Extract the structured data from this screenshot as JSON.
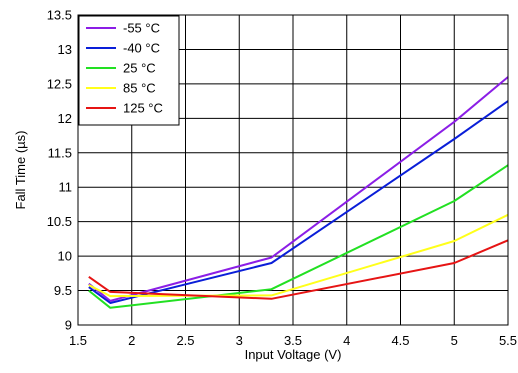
{
  "chart_data": {
    "type": "line",
    "xlabel": "Input Voltage (V)",
    "ylabel": "Fall Time (µs)",
    "xlim": [
      1.5,
      5.5
    ],
    "ylim": [
      9,
      13.5
    ],
    "xticks": [
      "1.5",
      "2",
      "2.5",
      "3",
      "3.5",
      "4",
      "4.5",
      "5",
      "5.5"
    ],
    "yticks": [
      "9",
      "9.5",
      "10",
      "10.5",
      "11",
      "11.5",
      "12",
      "12.5",
      "13",
      "13.5"
    ],
    "grid": true,
    "legend_position": "top-left",
    "series": [
      {
        "name": "-55 °C",
        "color": "#8b1ee6",
        "points": [
          [
            1.6,
            9.6
          ],
          [
            1.8,
            9.35
          ],
          [
            3.3,
            9.98
          ],
          [
            5.0,
            11.95
          ],
          [
            5.5,
            12.6
          ]
        ]
      },
      {
        "name": "-40 °C",
        "color": "#0a1ed8",
        "points": [
          [
            1.6,
            9.55
          ],
          [
            1.8,
            9.32
          ],
          [
            3.3,
            9.9
          ],
          [
            5.0,
            11.7
          ],
          [
            5.5,
            12.25
          ]
        ]
      },
      {
        "name": "25 °C",
        "color": "#22e022",
        "points": [
          [
            1.6,
            9.5
          ],
          [
            1.8,
            9.25
          ],
          [
            3.3,
            9.52
          ],
          [
            5.0,
            10.8
          ],
          [
            5.5,
            11.32
          ]
        ]
      },
      {
        "name": "85 °C",
        "color": "#ffff1a",
        "points": [
          [
            1.6,
            9.58
          ],
          [
            1.8,
            9.42
          ],
          [
            3.3,
            9.43
          ],
          [
            5.0,
            10.22
          ],
          [
            5.5,
            10.6
          ]
        ]
      },
      {
        "name": "125 °C",
        "color": "#e61414",
        "points": [
          [
            1.6,
            9.7
          ],
          [
            1.8,
            9.48
          ],
          [
            3.3,
            9.38
          ],
          [
            5.0,
            9.9
          ],
          [
            5.5,
            10.23
          ]
        ]
      }
    ]
  }
}
